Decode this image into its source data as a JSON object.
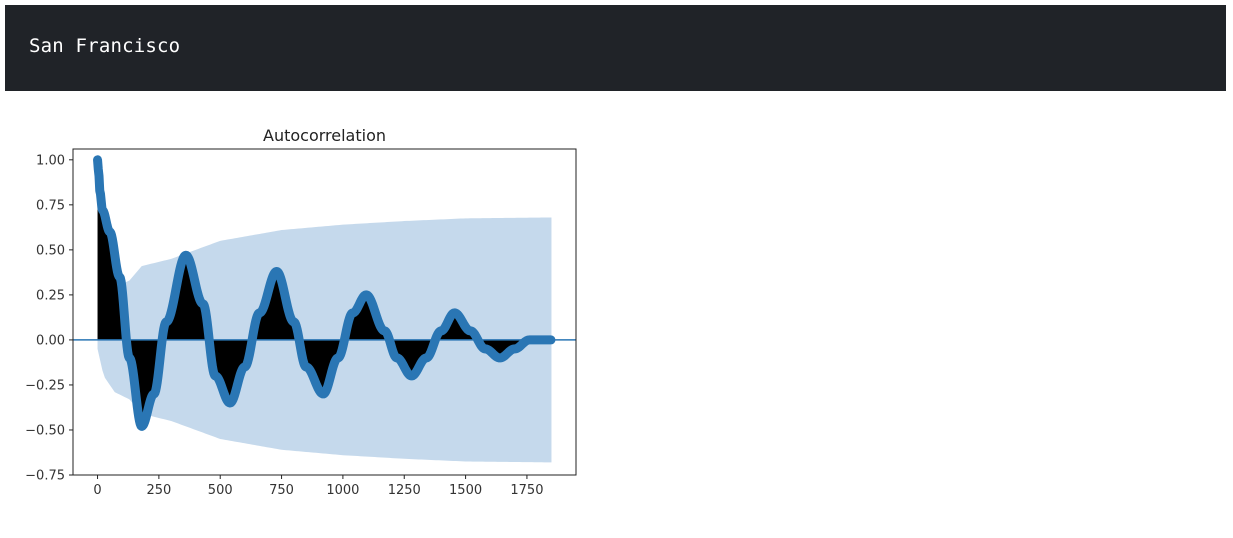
{
  "header": {
    "title": "San Francisco"
  },
  "colors": {
    "header_bg": "#202328",
    "header_text": "#ffffff",
    "series": "#2a76b4",
    "confidence_band": "#c5d9ec",
    "stem_fill": "#000000"
  },
  "chart_data": {
    "type": "line",
    "title": "Autocorrelation",
    "xlabel": "",
    "ylabel": "",
    "xlim": [
      -100,
      1950
    ],
    "ylim": [
      -0.75,
      1.06
    ],
    "xticks": [
      0,
      250,
      500,
      750,
      1000,
      1250,
      1500,
      1750
    ],
    "xtick_labels": [
      "0",
      "250",
      "500",
      "750",
      "1000",
      "1250",
      "1500",
      "1750"
    ],
    "yticks": [
      1.0,
      0.75,
      0.5,
      0.25,
      0.0,
      -0.25,
      -0.5,
      -0.75
    ],
    "ytick_labels": [
      "1.00",
      "0.75",
      "0.50",
      "0.25",
      "0.00",
      "−0.25",
      "−0.50",
      "−0.75"
    ],
    "grid": false,
    "lag_max": 1850,
    "acf_points": [
      {
        "x": 0,
        "y": 1.0
      },
      {
        "x": 5,
        "y": 0.92
      },
      {
        "x": 10,
        "y": 0.82
      },
      {
        "x": 20,
        "y": 0.72
      },
      {
        "x": 50,
        "y": 0.6
      },
      {
        "x": 90,
        "y": 0.35
      },
      {
        "x": 130,
        "y": -0.1
      },
      {
        "x": 180,
        "y": -0.48
      },
      {
        "x": 230,
        "y": -0.3
      },
      {
        "x": 280,
        "y": 0.1
      },
      {
        "x": 360,
        "y": 0.47
      },
      {
        "x": 430,
        "y": 0.2
      },
      {
        "x": 480,
        "y": -0.2
      },
      {
        "x": 540,
        "y": -0.35
      },
      {
        "x": 600,
        "y": -0.15
      },
      {
        "x": 660,
        "y": 0.15
      },
      {
        "x": 730,
        "y": 0.38
      },
      {
        "x": 800,
        "y": 0.1
      },
      {
        "x": 850,
        "y": -0.15
      },
      {
        "x": 920,
        "y": -0.3
      },
      {
        "x": 980,
        "y": -0.1
      },
      {
        "x": 1040,
        "y": 0.15
      },
      {
        "x": 1095,
        "y": 0.25
      },
      {
        "x": 1170,
        "y": 0.05
      },
      {
        "x": 1220,
        "y": -0.1
      },
      {
        "x": 1280,
        "y": -0.2
      },
      {
        "x": 1340,
        "y": -0.1
      },
      {
        "x": 1400,
        "y": 0.05
      },
      {
        "x": 1455,
        "y": 0.15
      },
      {
        "x": 1520,
        "y": 0.05
      },
      {
        "x": 1580,
        "y": -0.05
      },
      {
        "x": 1640,
        "y": -0.1
      },
      {
        "x": 1700,
        "y": -0.05
      },
      {
        "x": 1760,
        "y": 0.0
      },
      {
        "x": 1850,
        "y": 0.0
      }
    ],
    "confidence_upper": [
      {
        "x": 0,
        "y": 0.05
      },
      {
        "x": 25,
        "y": 0.2
      },
      {
        "x": 70,
        "y": 0.29
      },
      {
        "x": 130,
        "y": 0.33
      },
      {
        "x": 180,
        "y": 0.41
      },
      {
        "x": 300,
        "y": 0.45
      },
      {
        "x": 500,
        "y": 0.55
      },
      {
        "x": 750,
        "y": 0.61
      },
      {
        "x": 1000,
        "y": 0.64
      },
      {
        "x": 1250,
        "y": 0.66
      },
      {
        "x": 1500,
        "y": 0.675
      },
      {
        "x": 1850,
        "y": 0.68
      }
    ],
    "confidence_lower": [
      {
        "x": 0,
        "y": -0.05
      },
      {
        "x": 25,
        "y": -0.2
      },
      {
        "x": 70,
        "y": -0.29
      },
      {
        "x": 130,
        "y": -0.33
      },
      {
        "x": 180,
        "y": -0.41
      },
      {
        "x": 300,
        "y": -0.45
      },
      {
        "x": 500,
        "y": -0.55
      },
      {
        "x": 750,
        "y": -0.61
      },
      {
        "x": 1000,
        "y": -0.64
      },
      {
        "x": 1250,
        "y": -0.66
      },
      {
        "x": 1500,
        "y": -0.675
      },
      {
        "x": 1850,
        "y": -0.68
      }
    ]
  }
}
